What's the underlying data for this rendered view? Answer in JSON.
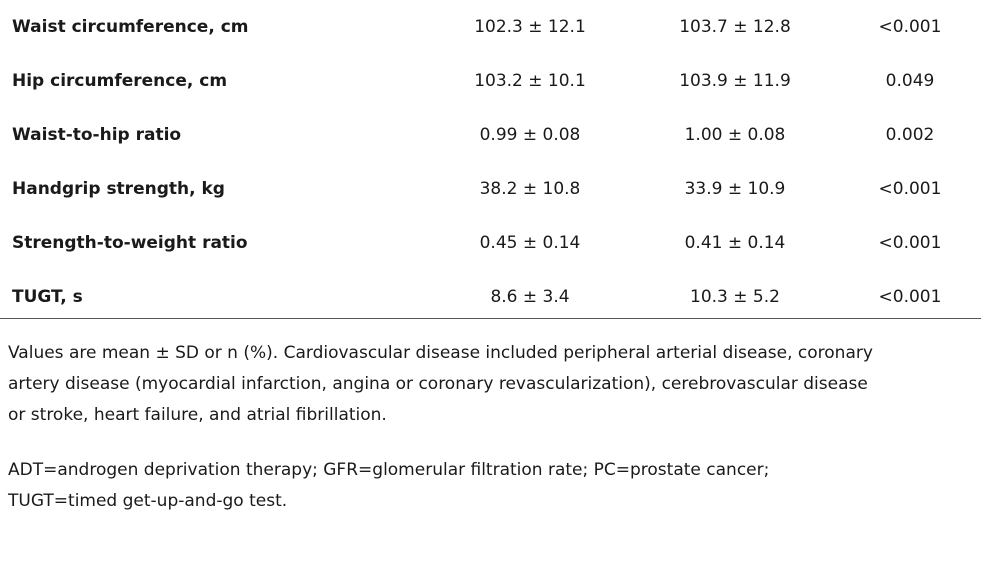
{
  "table": {
    "rows": [
      {
        "label": "Waist circumference, cm",
        "group1": "102.3 ± 12.1",
        "group2": "103.7 ± 12.8",
        "p": "<0.001"
      },
      {
        "label": "Hip circumference, cm",
        "group1": "103.2 ± 10.1",
        "group2": "103.9 ± 11.9",
        "p": "0.049"
      },
      {
        "label": "Waist-to-hip ratio",
        "group1": "0.99 ± 0.08",
        "group2": "1.00 ± 0.08",
        "p": "0.002"
      },
      {
        "label": "Handgrip strength, kg",
        "group1": "38.2 ± 10.8",
        "group2": "33.9 ± 10.9",
        "p": "<0.001"
      },
      {
        "label": "Strength-to-weight ratio",
        "group1": "0.45 ± 0.14",
        "group2": "0.41 ± 0.14",
        "p": "<0.001"
      },
      {
        "label": "TUGT, s",
        "group1": "8.6 ± 3.4",
        "group2": "10.3 ± 5.2",
        "p": "<0.001"
      }
    ]
  },
  "notes": {
    "line1": "Values are mean ± SD or n (%). Cardiovascular disease included peripheral arterial disease, coronary",
    "line2": "artery disease (myocardial infarction, angina or coronary revascularization), cerebrovascular disease",
    "line3": "or stroke, heart failure, and atrial fibrillation.",
    "abbrev_line1": "ADT=androgen deprivation therapy; GFR=glomerular filtration rate; PC=prostate cancer;",
    "abbrev_line2": "TUGT=timed get-up-and-go test."
  }
}
